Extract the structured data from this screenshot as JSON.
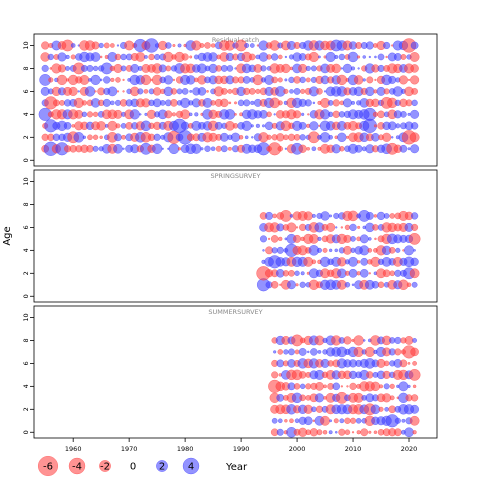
{
  "chart_data": {
    "type": "scatter",
    "subtype": "bubble-residual-plot",
    "ylabel": "Age",
    "xlabel": "Year",
    "xlim": [
      1953,
      2025
    ],
    "x_ticks": [
      1960,
      1970,
      1980,
      1990,
      2000,
      2010,
      2020
    ],
    "colors": {
      "negative": "#ff3b3b",
      "positive": "#3b3bff"
    },
    "legend": {
      "title": "Year",
      "items": [
        {
          "label": "-6",
          "value": -6
        },
        {
          "label": "-4",
          "value": -4
        },
        {
          "label": "-2",
          "value": -2
        },
        {
          "label": "0",
          "value": 0
        },
        {
          "label": "2",
          "value": 2
        },
        {
          "label": "4",
          "value": 4
        }
      ]
    },
    "panels": [
      {
        "name": "Residual catch",
        "ylim": [
          -0.5,
          11
        ],
        "y_ticks": [
          0,
          2,
          4,
          6,
          8,
          10
        ],
        "years": [
          1955,
          2021
        ],
        "ages": [
          1,
          10
        ],
        "seed": 11,
        "highlights": [
          {
            "x": 1956,
            "y": 1,
            "v": 3.0
          },
          {
            "x": 1958,
            "y": 1,
            "v": 2.5
          },
          {
            "x": 1973,
            "y": 1,
            "v": 2.0
          },
          {
            "x": 1994,
            "y": 1,
            "v": 2.5
          },
          {
            "x": 1996,
            "y": 1,
            "v": -2.5
          },
          {
            "x": 2000,
            "y": 1,
            "v": 2.0
          },
          {
            "x": 2017,
            "y": 1,
            "v": -2.0
          },
          {
            "x": 1960,
            "y": 2,
            "v": -2.0
          },
          {
            "x": 1978,
            "y": 2,
            "v": -2.5
          },
          {
            "x": 1980,
            "y": 2,
            "v": 3.0
          },
          {
            "x": 2003,
            "y": 2,
            "v": -2.0
          },
          {
            "x": 2020,
            "y": 2,
            "v": -3.0
          },
          {
            "x": 1956,
            "y": 3,
            "v": 2.5
          },
          {
            "x": 1979,
            "y": 3,
            "v": 3.0
          },
          {
            "x": 2013,
            "y": 3,
            "v": 3.0
          },
          {
            "x": 1955,
            "y": 4,
            "v": 2.5
          },
          {
            "x": 2013,
            "y": 4,
            "v": 2.5
          },
          {
            "x": 1956,
            "y": 5,
            "v": -2.5
          },
          {
            "x": 2016,
            "y": 5,
            "v": -2.0
          },
          {
            "x": 1955,
            "y": 7,
            "v": 2.0
          },
          {
            "x": 1961,
            "y": 8,
            "v": -2.0
          },
          {
            "x": 1966,
            "y": 8,
            "v": 2.0
          },
          {
            "x": 1959,
            "y": 10,
            "v": -2.0
          },
          {
            "x": 1972,
            "y": 10,
            "v": 2.5
          },
          {
            "x": 1974,
            "y": 10,
            "v": 3.0
          },
          {
            "x": 1990,
            "y": 10,
            "v": -2.0
          },
          {
            "x": 2007,
            "y": 10,
            "v": 2.0
          },
          {
            "x": 2020,
            "y": 10,
            "v": -3.0
          }
        ]
      },
      {
        "name": "SPRINGSURVEY",
        "ylim": [
          -0.5,
          11
        ],
        "y_ticks": [
          0,
          2,
          4,
          6,
          8,
          10
        ],
        "years": [
          1994,
          2021
        ],
        "ages": [
          1,
          7
        ],
        "seed": 23,
        "highlights": [
          {
            "x": 1994,
            "y": 1,
            "v": 2.5
          },
          {
            "x": 1994,
            "y": 2,
            "v": -3.0
          },
          {
            "x": 1996,
            "y": 3,
            "v": 2.5
          },
          {
            "x": 1999,
            "y": 4,
            "v": 2.5
          },
          {
            "x": 1998,
            "y": 7,
            "v": -2.0
          },
          {
            "x": 2012,
            "y": 7,
            "v": 2.0
          },
          {
            "x": 2021,
            "y": 5,
            "v": -2.0
          },
          {
            "x": 2020,
            "y": 2,
            "v": 2.0
          }
        ]
      },
      {
        "name": "SUMMERSURVEY",
        "ylim": [
          -0.5,
          11
        ],
        "y_ticks": [
          0,
          2,
          4,
          6,
          8,
          10
        ],
        "years": [
          1996,
          2021
        ],
        "ages": [
          0,
          8
        ],
        "seed": 37,
        "highlights": [
          {
            "x": 1996,
            "y": 4,
            "v": -2.5
          },
          {
            "x": 2017,
            "y": 1,
            "v": 2.5
          },
          {
            "x": 2013,
            "y": 2,
            "v": -2.0
          },
          {
            "x": 2008,
            "y": 3,
            "v": -2.0
          },
          {
            "x": 2020,
            "y": 7,
            "v": -2.5
          },
          {
            "x": 2021,
            "y": 5,
            "v": -2.0
          },
          {
            "x": 2000,
            "y": 8,
            "v": -2.0
          }
        ]
      }
    ]
  }
}
